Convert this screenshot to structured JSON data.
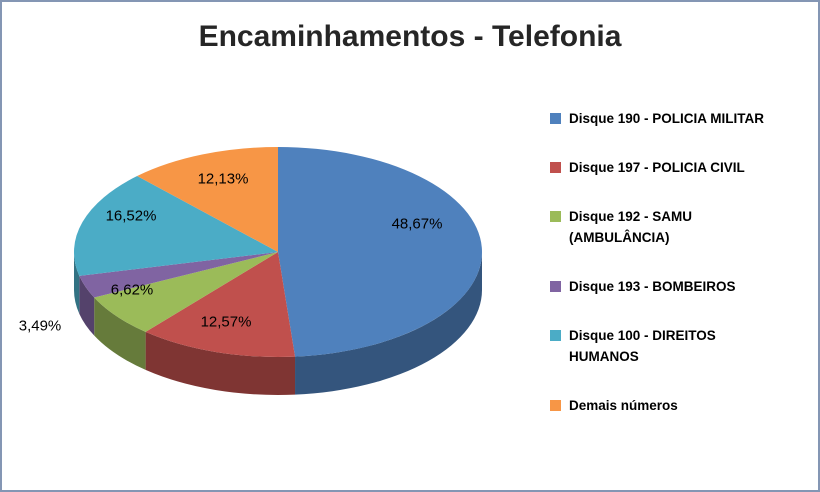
{
  "title": "Encaminhamentos - Telefonia",
  "chart_data": {
    "type": "pie",
    "title": "Encaminhamentos - Telefonia",
    "effect": "3d",
    "categories": [
      "Disque 190 - POLICIA MILITAR",
      "Disque 197 - POLICIA CIVIL",
      "Disque 192 - SAMU (AMBULÂNCIA)",
      "Disque 193 - BOMBEIROS",
      "Disque 100 - DIREITOS HUMANOS",
      "Demais números"
    ],
    "values": [
      48.67,
      12.57,
      6.62,
      3.49,
      16.52,
      12.13
    ],
    "labels": [
      "48,67%",
      "12,57%",
      "6,62%",
      "3,49%",
      "16,52%",
      "12,13%"
    ],
    "colors": [
      "#4F81BD",
      "#C0504D",
      "#9BBB59",
      "#8064A2",
      "#4BACC6",
      "#F79646"
    ],
    "legend_position": "right",
    "start_angle_deg": 0,
    "direction": "clockwise"
  },
  "legend": {
    "items": [
      "Disque 190 - POLICIA MILITAR",
      "Disque 197 - POLICIA CIVIL",
      "Disque 192 - SAMU\n(AMBULÂNCIA)",
      "Disque 193 - BOMBEIROS",
      "Disque 100 - DIREITOS\nHUMANOS",
      "Demais números"
    ]
  }
}
